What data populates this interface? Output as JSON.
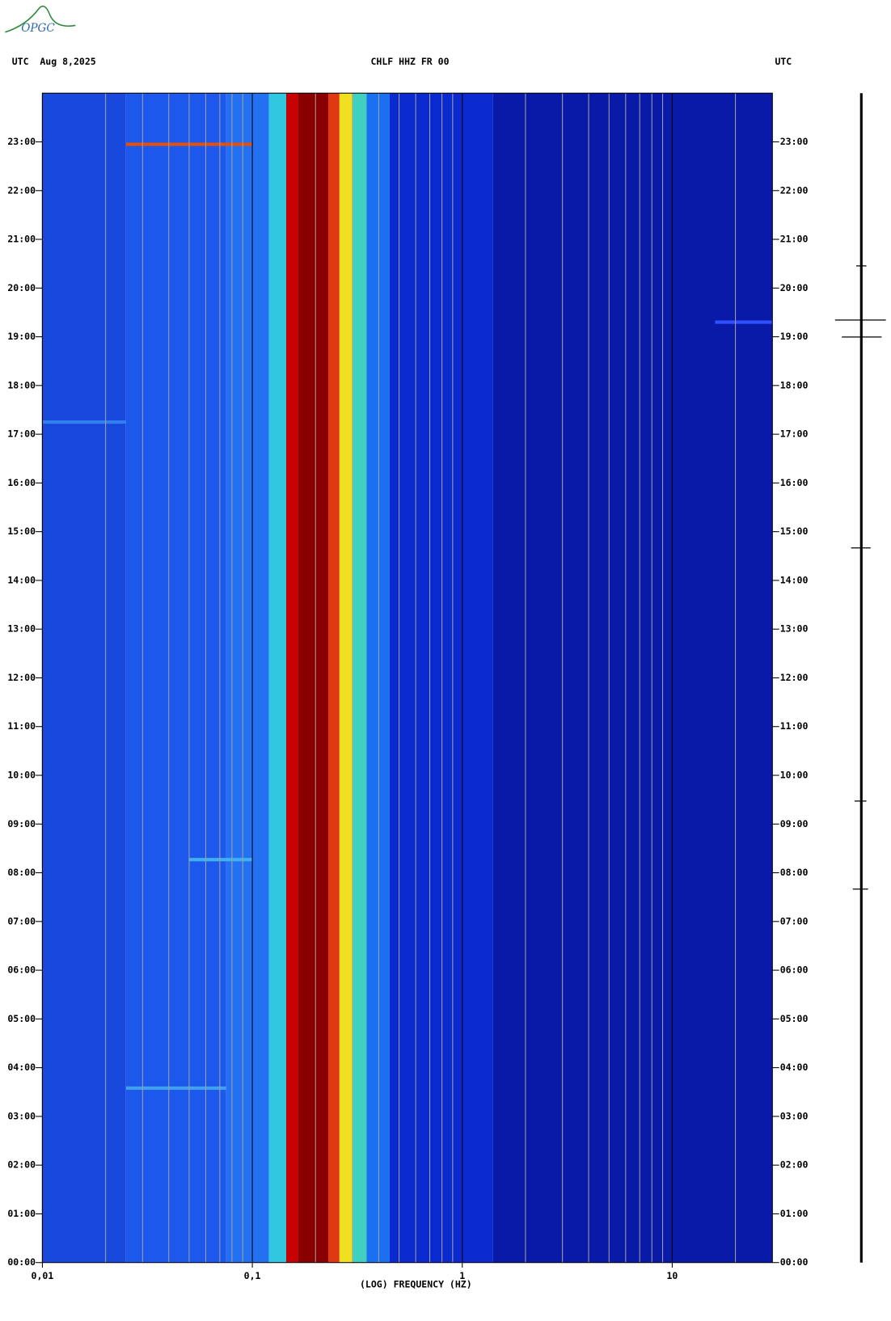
{
  "chart_data": {
    "type": "spectrogram",
    "logo": "OPGC",
    "title": "CHLF HHZ FR 00",
    "left_header": "UTC  Aug 8,2025",
    "right_header": "UTC",
    "x_label": "(LOG) FREQUENCY (HZ)",
    "x_log": true,
    "xlim": [
      0.01,
      30
    ],
    "xticks": [
      {
        "value": 0.01,
        "label": "0,01"
      },
      {
        "value": 0.1,
        "label": "0,1"
      },
      1,
      10
    ],
    "x_minor_grid": [
      0.02,
      0.03,
      0.04,
      0.05,
      0.06,
      0.07,
      0.08,
      0.09,
      0.2,
      0.3,
      0.4,
      0.5,
      0.6,
      0.7,
      0.8,
      0.9,
      2,
      3,
      4,
      5,
      6,
      7,
      8,
      9,
      20
    ],
    "ylim": [
      0,
      24
    ],
    "yticks": [
      {
        "value": 0,
        "label": "00:00"
      },
      {
        "value": 1,
        "label": "01:00"
      },
      {
        "value": 2,
        "label": "02:00"
      },
      {
        "value": 3,
        "label": "03:00"
      },
      {
        "value": 4,
        "label": "04:00"
      },
      {
        "value": 5,
        "label": "05:00"
      },
      {
        "value": 6,
        "label": "06:00"
      },
      {
        "value": 7,
        "label": "07:00"
      },
      {
        "value": 8,
        "label": "08:00"
      },
      {
        "value": 9,
        "label": "09:00"
      },
      {
        "value": 10,
        "label": "10:00"
      },
      {
        "value": 11,
        "label": "11:00"
      },
      {
        "value": 12,
        "label": "12:00"
      },
      {
        "value": 13,
        "label": "13:00"
      },
      {
        "value": 14,
        "label": "14:00"
      },
      {
        "value": 15,
        "label": "15:00"
      },
      {
        "value": 16,
        "label": "16:00"
      },
      {
        "value": 17,
        "label": "17:00"
      },
      {
        "value": 18,
        "label": "18:00"
      },
      {
        "value": 19,
        "label": "19:00"
      },
      {
        "value": 20,
        "label": "20:00"
      },
      {
        "value": 21,
        "label": "21:00"
      },
      {
        "value": 22,
        "label": "22:00"
      },
      {
        "value": 23,
        "label": "23:00"
      }
    ],
    "bands": [
      {
        "from": 0.01,
        "to": 0.025,
        "color": "#1848dc"
      },
      {
        "from": 0.025,
        "to": 0.075,
        "color": "#1c58ec"
      },
      {
        "from": 0.075,
        "to": 0.12,
        "color": "#2470f2"
      },
      {
        "from": 0.12,
        "to": 0.145,
        "color": "#30c8e0"
      },
      {
        "from": 0.145,
        "to": 0.165,
        "color": "#c80000"
      },
      {
        "from": 0.165,
        "to": 0.23,
        "color": "#8a0000"
      },
      {
        "from": 0.23,
        "to": 0.26,
        "color": "#e03810"
      },
      {
        "from": 0.26,
        "to": 0.3,
        "color": "#f0e020"
      },
      {
        "from": 0.3,
        "to": 0.35,
        "color": "#40d0c0"
      },
      {
        "from": 0.35,
        "to": 0.45,
        "color": "#1a70f0"
      },
      {
        "from": 0.45,
        "to": 1.4,
        "color": "#0a2ad0"
      },
      {
        "from": 1.4,
        "to": 30,
        "color": "#0a1aa8"
      }
    ],
    "events": [
      {
        "time": 22.95,
        "from": 0.025,
        "to": 0.1,
        "color": "#e05010"
      },
      {
        "time": 8.27,
        "from": 0.05,
        "to": 0.1,
        "color": "#40b0f0"
      },
      {
        "time": 3.58,
        "from": 0.025,
        "to": 0.075,
        "color": "#40a0f0"
      },
      {
        "time": 19.3,
        "from": 16,
        "to": 30,
        "color": "#3050ff"
      },
      {
        "time": 17.25,
        "from": 0.01,
        "to": 0.025,
        "color": "#3080f0"
      }
    ]
  }
}
